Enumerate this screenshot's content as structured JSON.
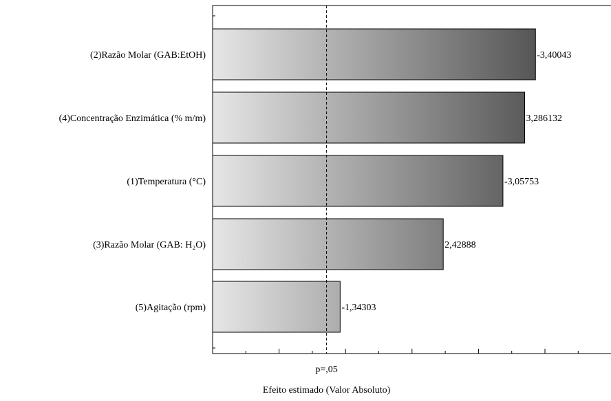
{
  "chart_data": {
    "type": "bar",
    "orientation": "horizontal",
    "categories": [
      "(2)Razão Molar (GAB:EtOH)",
      "(4)Concentração Enzimática (% m/m)",
      "(1)Temperatura (°C)",
      "(3)Razão Molar (GAB: H₂O)",
      "(5)Agitação (rpm)"
    ],
    "values": [
      3.40043,
      3.286132,
      3.05753,
      2.42888,
      1.34303
    ],
    "value_labels": [
      "-3,40043",
      "3,286132",
      "-3,05753",
      "2,42888",
      "-1,34303"
    ],
    "xlim": [
      0,
      4.0
    ],
    "xlabel": "Efeito estimado (Valor Absoluto)",
    "reference_line": {
      "value": 1.2,
      "label": "p=,05"
    },
    "grid": false,
    "bar_fill": {
      "light": "#e6e6e6",
      "dark": "#3a3a3a"
    }
  }
}
